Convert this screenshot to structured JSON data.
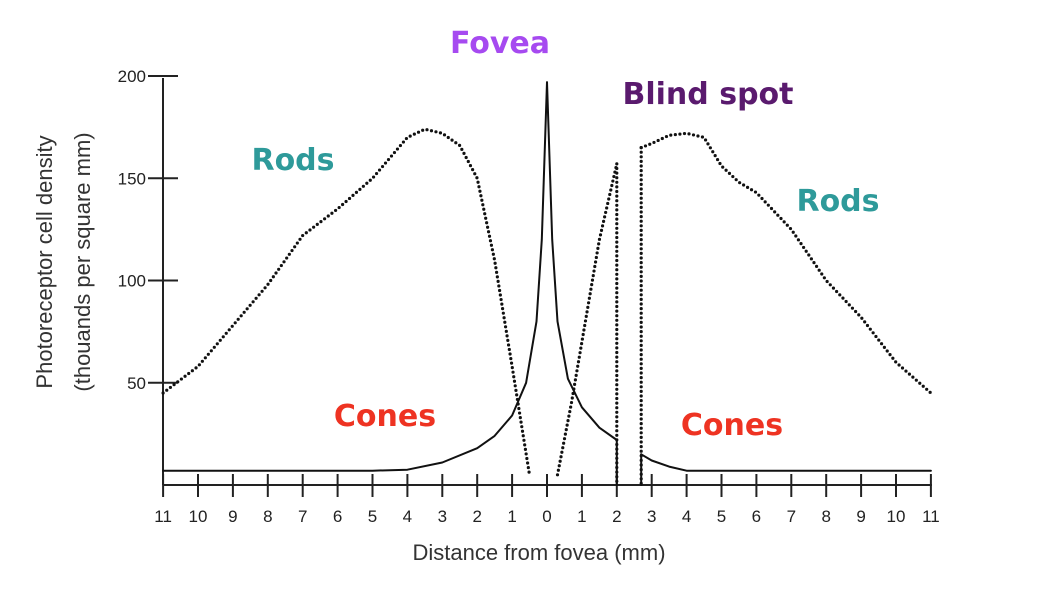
{
  "chart_data": {
    "type": "line",
    "xlabel": "Distance from fovea (mm)",
    "ylabel_line1": "Photoreceptor cell density",
    "ylabel_line2": "(thouands per square mm)",
    "ylim": [
      0,
      200
    ],
    "yticks": [
      50,
      100,
      150,
      200
    ],
    "xticks": [
      "11",
      "10",
      "9",
      "8",
      "7",
      "6",
      "5",
      "4",
      "3",
      "2",
      "1",
      "0",
      "1",
      "2",
      "3",
      "4",
      "5",
      "6",
      "7",
      "8",
      "9",
      "10",
      "11"
    ],
    "grid": false,
    "annotations": {
      "fovea": "Fovea",
      "blind_spot": "Blind spot",
      "rods_left": "Rods",
      "rods_right": "Rods",
      "cones_left": "Cones",
      "cones_right": "Cones"
    },
    "colors": {
      "fovea": "#a64af0",
      "blind_spot": "#5a1a6e",
      "rods": "#2e9a9a",
      "cones": "#ee3322",
      "line": "#111111",
      "axis": "#222222"
    },
    "series": [
      {
        "style": "dotted",
        "segments": [
          [
            [
              -11,
              45
            ],
            [
              -10,
              58
            ],
            [
              -9,
              78
            ],
            [
              -8,
              98
            ],
            [
              -7,
              122
            ],
            [
              -6,
              135
            ],
            [
              -5,
              150
            ],
            [
              -4,
              170
            ],
            [
              -3.5,
              174
            ],
            [
              -3,
              172
            ],
            [
              -2.5,
              166
            ],
            [
              -2,
              150
            ],
            [
              -1.5,
              110
            ],
            [
              -1,
              58
            ],
            [
              -0.5,
              5
            ]
          ],
          [
            [
              0.3,
              5
            ],
            [
              0.7,
              40
            ],
            [
              1,
              70
            ],
            [
              1.5,
              120
            ],
            [
              2,
              157
            ]
          ],
          [
            [
              2.7,
              165
            ],
            [
              3,
              167
            ],
            [
              3.5,
              171
            ],
            [
              4,
              172
            ],
            [
              4.5,
              170
            ],
            [
              5,
              156
            ],
            [
              5.5,
              148
            ],
            [
              6,
              143
            ],
            [
              7,
              125
            ],
            [
              8,
              100
            ],
            [
              9,
              82
            ],
            [
              10,
              60
            ],
            [
              11,
              45
            ]
          ]
        ]
      },
      {
        "style": "solid",
        "segments": [
          [
            [
              -11,
              7
            ],
            [
              -10,
              7
            ],
            [
              -9,
              7
            ],
            [
              -8,
              7
            ],
            [
              -7,
              7
            ],
            [
              -6,
              7
            ],
            [
              -5,
              7
            ],
            [
              -4,
              7.5
            ],
            [
              -3,
              11
            ],
            [
              -2,
              18
            ],
            [
              -1.5,
              24
            ],
            [
              -1,
              34
            ],
            [
              -0.6,
              50
            ],
            [
              -0.3,
              80
            ],
            [
              -0.15,
              120
            ],
            [
              0,
              197
            ],
            [
              0.15,
              120
            ],
            [
              0.3,
              80
            ],
            [
              0.6,
              52
            ],
            [
              1,
              38
            ],
            [
              1.5,
              28
            ],
            [
              2,
              22
            ]
          ],
          [
            [
              2.7,
              15
            ],
            [
              3,
              12
            ],
            [
              3.5,
              9
            ],
            [
              4,
              7
            ],
            [
              5,
              7
            ],
            [
              6,
              7
            ],
            [
              7,
              7
            ],
            [
              8,
              7
            ],
            [
              9,
              7
            ],
            [
              10,
              7
            ],
            [
              11,
              7
            ]
          ]
        ]
      },
      {
        "style": "dotted",
        "segments": [
          [
            [
              2,
              157
            ],
            [
              2,
              0
            ]
          ],
          [
            [
              2.7,
              165
            ],
            [
              2.7,
              0
            ]
          ]
        ]
      },
      {
        "style": "solid",
        "segments": [
          [
            [
              2,
              22
            ],
            [
              2,
              0
            ]
          ],
          [
            [
              2.7,
              15
            ],
            [
              2.7,
              0
            ]
          ]
        ]
      }
    ]
  }
}
